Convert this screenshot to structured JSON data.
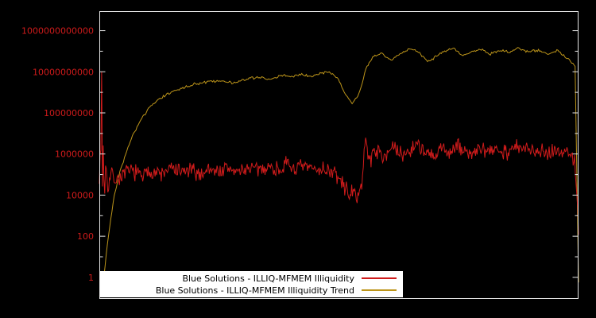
{
  "chart_data": {
    "type": "line",
    "title": "",
    "xlabel": "",
    "ylabel": "",
    "background_color": "#000000",
    "axis_color": "#e6e6e6",
    "tick_label_color": "#cf1b1b",
    "y_scale": "log10",
    "ylim_log10": [
      -1.05,
      12.95
    ],
    "xlim": [
      0,
      1
    ],
    "grid": false,
    "y_tick_labels": [
      "1",
      "100",
      "10000",
      "1000000",
      "100000000",
      "10000000000",
      "1000000000000"
    ],
    "y_tick_exponents": [
      0,
      2,
      4,
      6,
      8,
      10,
      12
    ],
    "x_tick_labels": [],
    "legend": {
      "position": "bottom-center",
      "background": "#ffffff",
      "text_color": "#000000"
    },
    "series": [
      {
        "name": "Blue Solutions - ILLIQ-MFMEM Illiquidity",
        "color": "#cf1b1b",
        "noise_log10": 0.3,
        "points": 620,
        "seed": 7,
        "anchors_log10": [
          [
            0.0,
            5.0
          ],
          [
            0.004,
            6.5
          ],
          [
            0.0055,
            12.9
          ],
          [
            0.007,
            -0.5
          ],
          [
            0.0085,
            9.5
          ],
          [
            0.01,
            3.3
          ],
          [
            0.013,
            5.6
          ],
          [
            0.018,
            4.4
          ],
          [
            0.025,
            5.1
          ],
          [
            0.035,
            4.7
          ],
          [
            0.05,
            5.0
          ],
          [
            0.07,
            5.2
          ],
          [
            0.09,
            4.9
          ],
          [
            0.11,
            5.2
          ],
          [
            0.13,
            5.0
          ],
          [
            0.15,
            5.3
          ],
          [
            0.17,
            5.1
          ],
          [
            0.19,
            5.2
          ],
          [
            0.21,
            5.0
          ],
          [
            0.23,
            5.3
          ],
          [
            0.25,
            5.15
          ],
          [
            0.27,
            5.3
          ],
          [
            0.29,
            5.1
          ],
          [
            0.31,
            5.35
          ],
          [
            0.33,
            5.2
          ],
          [
            0.35,
            5.4
          ],
          [
            0.37,
            5.25
          ],
          [
            0.39,
            5.45
          ],
          [
            0.41,
            5.3
          ],
          [
            0.43,
            5.35
          ],
          [
            0.45,
            5.25
          ],
          [
            0.47,
            5.3
          ],
          [
            0.49,
            5.1
          ],
          [
            0.505,
            4.6
          ],
          [
            0.52,
            4.15
          ],
          [
            0.535,
            3.95
          ],
          [
            0.548,
            4.4
          ],
          [
            0.556,
            7.0
          ],
          [
            0.563,
            5.6
          ],
          [
            0.575,
            6.25
          ],
          [
            0.59,
            5.9
          ],
          [
            0.61,
            6.3
          ],
          [
            0.63,
            5.95
          ],
          [
            0.65,
            6.2
          ],
          [
            0.665,
            6.6
          ],
          [
            0.68,
            6.0
          ],
          [
            0.7,
            5.8
          ],
          [
            0.715,
            6.3
          ],
          [
            0.73,
            6.1
          ],
          [
            0.75,
            6.35
          ],
          [
            0.77,
            6.0
          ],
          [
            0.79,
            6.2
          ],
          [
            0.81,
            6.05
          ],
          [
            0.83,
            6.3
          ],
          [
            0.85,
            6.1
          ],
          [
            0.87,
            6.35
          ],
          [
            0.89,
            6.15
          ],
          [
            0.91,
            6.3
          ],
          [
            0.93,
            6.05
          ],
          [
            0.95,
            6.25
          ],
          [
            0.965,
            6.0
          ],
          [
            0.98,
            6.2
          ],
          [
            0.993,
            5.5
          ],
          [
            1.0,
            2.5
          ]
        ]
      },
      {
        "name": "Blue Solutions - ILLIQ-MFMEM Illiquidity Trend",
        "color": "#bd951a",
        "noise_log10": 0.05,
        "points": 420,
        "seed": 3,
        "anchors_log10": [
          [
            0.0,
            -0.9
          ],
          [
            0.006,
            -0.7
          ],
          [
            0.012,
            0.6
          ],
          [
            0.02,
            2.2
          ],
          [
            0.03,
            3.8
          ],
          [
            0.04,
            4.9
          ],
          [
            0.055,
            6.0
          ],
          [
            0.07,
            6.9
          ],
          [
            0.085,
            7.6
          ],
          [
            0.1,
            8.1
          ],
          [
            0.12,
            8.6
          ],
          [
            0.14,
            8.9
          ],
          [
            0.16,
            9.1
          ],
          [
            0.19,
            9.35
          ],
          [
            0.22,
            9.5
          ],
          [
            0.25,
            9.55
          ],
          [
            0.28,
            9.45
          ],
          [
            0.31,
            9.65
          ],
          [
            0.34,
            9.75
          ],
          [
            0.36,
            9.6
          ],
          [
            0.38,
            9.85
          ],
          [
            0.4,
            9.75
          ],
          [
            0.42,
            9.9
          ],
          [
            0.44,
            9.8
          ],
          [
            0.46,
            9.9
          ],
          [
            0.48,
            10.0
          ],
          [
            0.497,
            9.7
          ],
          [
            0.512,
            9.0
          ],
          [
            0.527,
            8.45
          ],
          [
            0.542,
            8.9
          ],
          [
            0.557,
            10.2
          ],
          [
            0.572,
            10.75
          ],
          [
            0.59,
            10.9
          ],
          [
            0.61,
            10.55
          ],
          [
            0.63,
            10.9
          ],
          [
            0.65,
            11.15
          ],
          [
            0.668,
            10.9
          ],
          [
            0.685,
            10.5
          ],
          [
            0.7,
            10.7
          ],
          [
            0.72,
            11.0
          ],
          [
            0.74,
            11.15
          ],
          [
            0.757,
            10.8
          ],
          [
            0.775,
            10.95
          ],
          [
            0.795,
            11.1
          ],
          [
            0.815,
            10.85
          ],
          [
            0.835,
            11.05
          ],
          [
            0.855,
            10.95
          ],
          [
            0.875,
            11.15
          ],
          [
            0.895,
            10.95
          ],
          [
            0.915,
            11.05
          ],
          [
            0.935,
            10.85
          ],
          [
            0.955,
            11.05
          ],
          [
            0.97,
            10.8
          ],
          [
            0.983,
            10.55
          ],
          [
            0.993,
            10.3
          ],
          [
            1.0,
            -0.3
          ]
        ]
      }
    ]
  }
}
